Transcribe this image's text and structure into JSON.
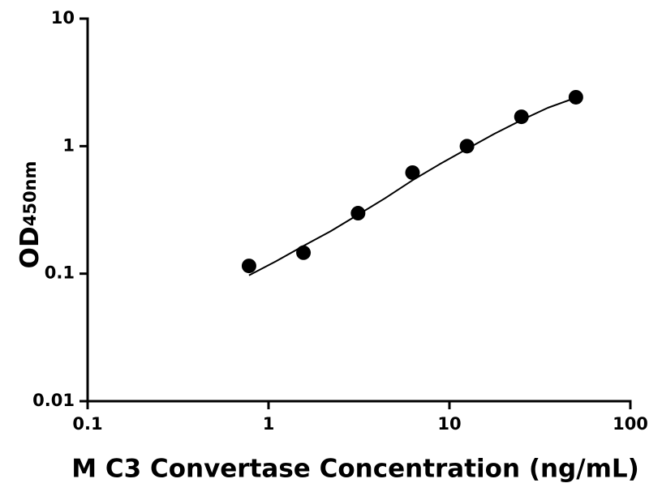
{
  "chart_data": {
    "type": "scatter",
    "x_label": "M C3 Convertase Concentration (ng/mL)",
    "y_label": "OD",
    "y_label_sub": "450nm",
    "x": [
      0.78,
      1.56,
      3.125,
      6.25,
      12.5,
      25,
      50
    ],
    "values": [
      0.115,
      0.146,
      0.298,
      0.62,
      1.0,
      1.7,
      2.42
    ],
    "color": "#000000",
    "curve": {
      "x": [
        0.78,
        1.1,
        1.56,
        2.2,
        3.125,
        4.4,
        6.25,
        8.8,
        12.5,
        17.7,
        25,
        35,
        50
      ],
      "values": [
        0.097,
        0.125,
        0.165,
        0.215,
        0.29,
        0.39,
        0.54,
        0.72,
        0.95,
        1.25,
        1.6,
        2.0,
        2.4
      ]
    },
    "x_log": true,
    "y_log": true,
    "xlim": [
      0.1,
      100
    ],
    "ylim": [
      0.01,
      10
    ],
    "xticks": [
      0.1,
      1,
      10,
      100
    ],
    "yticks": [
      0.01,
      0.1,
      1,
      10
    ]
  }
}
